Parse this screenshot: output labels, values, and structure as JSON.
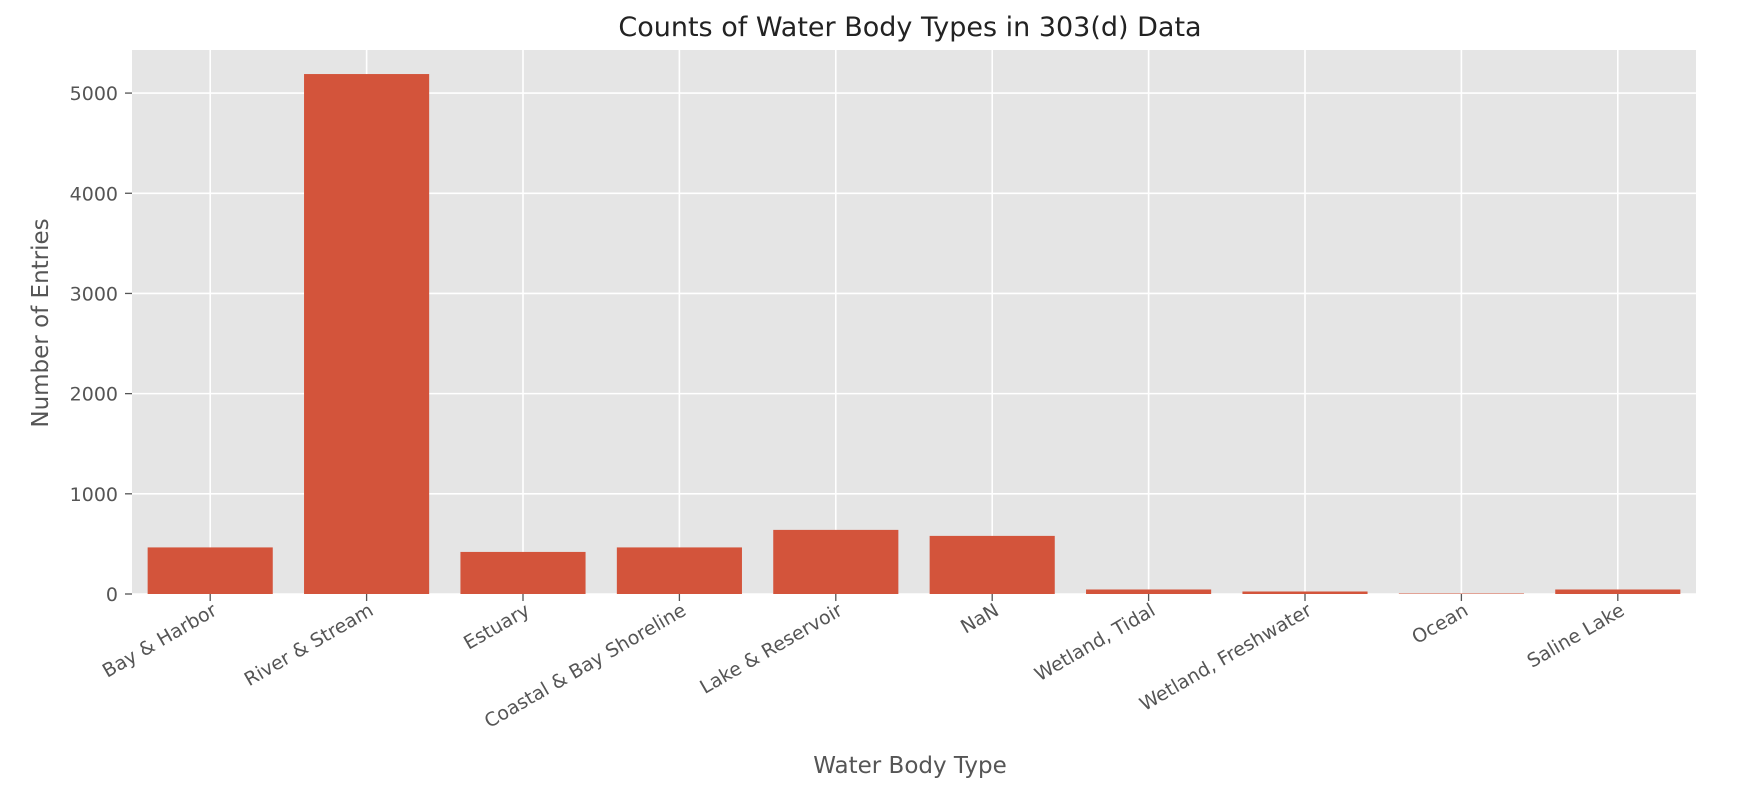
{
  "chart_data": {
    "type": "bar",
    "title": "Counts of Water Body Types in 303(d) Data",
    "xlabel": "Water Body Type",
    "ylabel": "Number of Entries",
    "categories": [
      "Bay & Harbor",
      "River & Stream",
      "Estuary",
      "Coastal & Bay Shoreline",
      "Lake & Reservoir",
      "NaN",
      "Wetland, Tidal",
      "Wetland, Freshwater",
      "Ocean",
      "Saline Lake"
    ],
    "values": [
      465,
      5190,
      420,
      465,
      640,
      580,
      45,
      25,
      5,
      45
    ],
    "ylim": [
      0,
      5430
    ],
    "yticks": [
      0,
      1000,
      2000,
      3000,
      4000,
      5000
    ],
    "grid": true,
    "legend": "none",
    "colors": {
      "bar": "#d3543b",
      "plot_background": "#e5e5e5",
      "grid": "#ffffff"
    }
  }
}
